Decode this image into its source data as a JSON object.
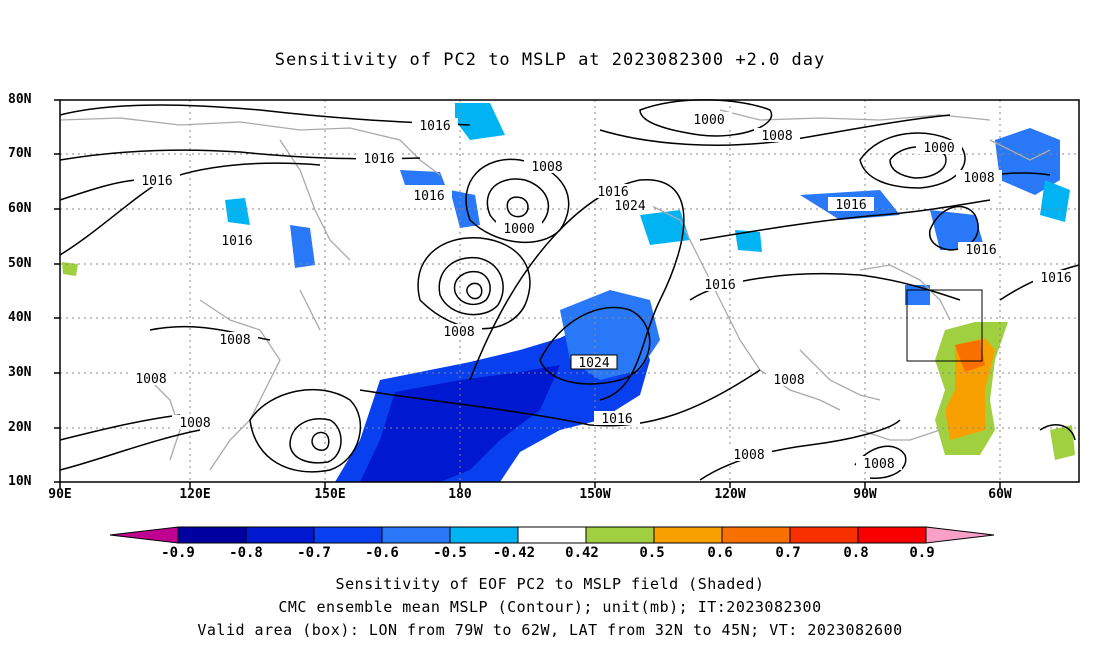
{
  "title": "Sensitivity of PC2 to MSLP at 2023082300 +2.0 day",
  "lat_labels": [
    "80N",
    "70N",
    "60N",
    "50N",
    "40N",
    "30N",
    "20N",
    "10N"
  ],
  "lon_labels": [
    "90E",
    "120E",
    "150E",
    "180",
    "150W",
    "120W",
    "90W",
    "60W"
  ],
  "contour_labels": [
    "1016",
    "1016",
    "1016",
    "1016",
    "1016",
    "1016",
    "1016",
    "1016",
    "1016",
    "1016",
    "1016",
    "1016",
    "1008",
    "1008",
    "1008",
    "1008",
    "1008",
    "1008",
    "1008",
    "1008",
    "1008",
    "1008",
    "1008",
    "1000",
    "1000",
    "1000",
    "1024",
    "1024"
  ],
  "colorbar": {
    "labels": [
      "-0.9",
      "-0.8",
      "-0.7",
      "-0.6",
      "-0.5",
      "-0.42",
      "0.42",
      "0.5",
      "0.6",
      "0.7",
      "0.8",
      "0.9"
    ],
    "colors": [
      "#c00090",
      "#0000a0",
      "#0018d0",
      "#0840f0",
      "#2878f8",
      "#00b4f4",
      "#ffffff",
      "#a0d040",
      "#f8a000",
      "#f87000",
      "#f83000",
      "#f80000",
      "#f8a0c8"
    ]
  },
  "captions": [
    "Sensitivity of EOF PC2 to MSLP field (Shaded)",
    "CMC ensemble mean MSLP (Contour); unit(mb); IT:2023082300",
    "Valid area (box): LON from 79W to 62W, LAT from 32N to 45N; VT: 2023082600"
  ]
}
